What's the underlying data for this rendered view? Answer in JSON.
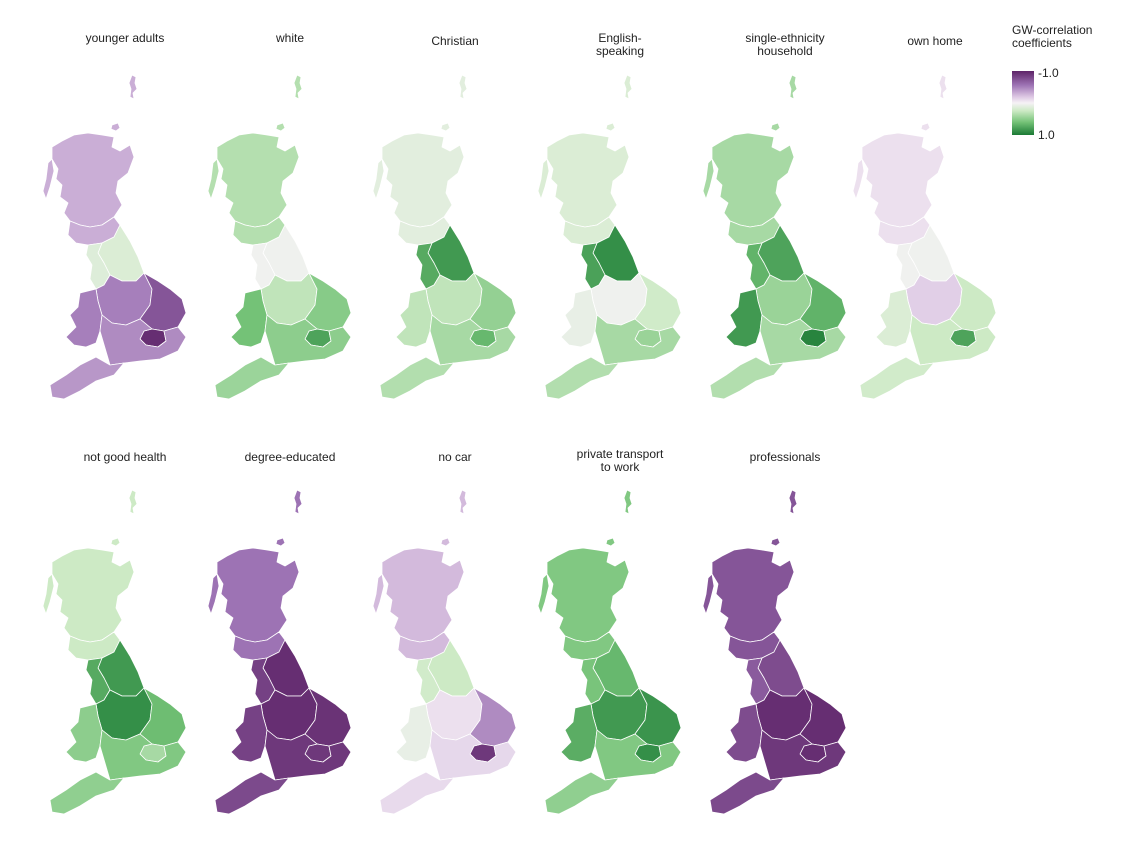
{
  "legend": {
    "title": "GW-correlation\ncoefficients",
    "max_label": "-1.0",
    "min_label": "1.0"
  },
  "colors": {
    "strong_negative": "#5e2468",
    "negative": "#9d73b4",
    "weak_negative": "#dcc6e3",
    "neutral": "#f6f2f6",
    "weak_positive": "#cdeac5",
    "positive": "#74c277",
    "strong_positive": "#1b7a35",
    "boundary": "#ffffff"
  },
  "panels": [
    {
      "title": "younger adults",
      "scotland": -0.35,
      "north": 0.2,
      "midlands": -0.55,
      "south": -0.5,
      "london": -0.95,
      "wales": -0.55
    },
    {
      "title": "white",
      "scotland": 0.4,
      "north": 0.05,
      "midlands": 0.35,
      "south": 0.55,
      "london": 0.8,
      "wales": 0.65
    },
    {
      "title": "Christian",
      "scotland": 0.15,
      "north": 0.85,
      "midlands": 0.35,
      "south": 0.45,
      "london": 0.7,
      "wales": 0.35
    },
    {
      "title": "English-\nspeaking",
      "scotland": 0.2,
      "north": 0.9,
      "midlands": 0.05,
      "south": 0.45,
      "london": 0.5,
      "wales": 0.1
    },
    {
      "title": "single-ethnicity\nhousehold",
      "scotland": 0.45,
      "north": 0.8,
      "midlands": 0.5,
      "south": 0.45,
      "london": 0.95,
      "wales": 0.85
    },
    {
      "title": "own home",
      "scotland": -0.1,
      "north": 0.05,
      "midlands": -0.2,
      "south": 0.3,
      "london": 0.8,
      "wales": 0.2
    },
    {
      "title": "not good health",
      "scotland": 0.3,
      "north": 0.85,
      "midlands": 0.9,
      "south": 0.6,
      "london": 0.45,
      "wales": 0.55
    },
    {
      "title": "degree-educated",
      "scotland": -0.6,
      "north": -0.95,
      "midlands": -0.95,
      "south": -0.9,
      "london": -0.9,
      "wales": -0.85
    },
    {
      "title": "no car",
      "scotland": -0.3,
      "north": 0.3,
      "midlands": -0.1,
      "south": -0.15,
      "london": -0.9,
      "wales": 0.1
    },
    {
      "title": "private transport\nto work",
      "scotland": 0.6,
      "north": 0.7,
      "midlands": 0.85,
      "south": 0.6,
      "london": 0.9,
      "wales": 0.75
    },
    {
      "title": "professionals",
      "scotland": -0.75,
      "north": -0.8,
      "midlands": -0.95,
      "south": -0.9,
      "london": -0.95,
      "wales": -0.8
    }
  ]
}
